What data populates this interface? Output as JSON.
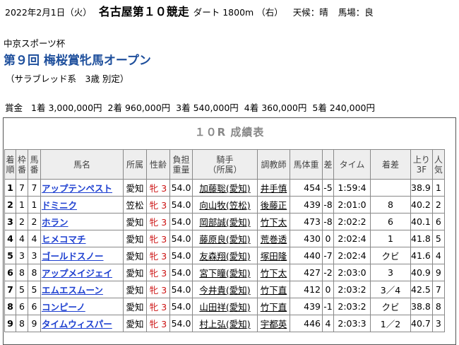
{
  "header": {
    "date": "2022年2月1日",
    "weekday": "（火）",
    "race": "名古屋第１０競走",
    "course": "ダート 1800m",
    "direction": "（右）",
    "weather": "天候：晴",
    "going": "馬場：良"
  },
  "race_info": {
    "sponsor": "中京スポーツ杯",
    "title": "第９回 梅桜賞牝馬オープン",
    "conditions": "（サラブレッド系　3歳 別定）"
  },
  "prize": {
    "label": "賞金",
    "items": [
      "1着 3,000,000円",
      "2着 960,000円",
      "3着 540,000円",
      "4着 360,000円",
      "5着 240,000円"
    ]
  },
  "table": {
    "caption": "１０R 成績表",
    "headers": {
      "rank": "着\n順",
      "frame": "枠\n番",
      "number": "馬\n番",
      "horse": "馬名",
      "affil": "所属",
      "sex_age": "性齢",
      "weight_carried": "負担\n重量",
      "jockey": "騎手\n（所属）",
      "trainer": "調教師",
      "body_weight": "馬体重",
      "diff": "差",
      "time": "タイム",
      "margin": "着差",
      "last3f": "上り\n3F",
      "popularity": "人\n気"
    },
    "rows": [
      {
        "rank": "1",
        "frame": "7",
        "number": "7",
        "horse": "アップテンペスト",
        "affil": "愛知",
        "sex_age": "牝 3",
        "weight_carried": "54.0",
        "jockey": "加藤聡(愛知)",
        "trainer": "井手慎",
        "body_weight": "454",
        "diff": "-5",
        "time": "1:59:4",
        "margin": "",
        "last3f": "38.9",
        "popularity": "1"
      },
      {
        "rank": "2",
        "frame": "1",
        "number": "1",
        "horse": "ドミニク",
        "affil": "笠松",
        "sex_age": "牝 3",
        "weight_carried": "54.0",
        "jockey": "向山牧(笠松)",
        "trainer": "後藤正",
        "body_weight": "439",
        "diff": "-8",
        "time": "2:01:0",
        "margin": "8",
        "last3f": "40.2",
        "popularity": "2"
      },
      {
        "rank": "3",
        "frame": "2",
        "number": "2",
        "horse": "ホラン",
        "affil": "愛知",
        "sex_age": "牝 3",
        "weight_carried": "54.0",
        "jockey": "岡部誠(愛知)",
        "trainer": "竹下太",
        "body_weight": "473",
        "diff": "-8",
        "time": "2:02:2",
        "margin": "6",
        "last3f": "40.1",
        "popularity": "6"
      },
      {
        "rank": "4",
        "frame": "4",
        "number": "4",
        "horse": "ヒメコマチ",
        "affil": "愛知",
        "sex_age": "牝 3",
        "weight_carried": "54.0",
        "jockey": "藤原良(愛知)",
        "trainer": "荒巻透",
        "body_weight": "430",
        "diff": "0",
        "time": "2:02:4",
        "margin": "1",
        "last3f": "41.8",
        "popularity": "5"
      },
      {
        "rank": "5",
        "frame": "3",
        "number": "3",
        "horse": "ゴールドスノー",
        "affil": "愛知",
        "sex_age": "牝 3",
        "weight_carried": "54.0",
        "jockey": "友森翔(愛知)",
        "trainer": "塚田隆",
        "body_weight": "440",
        "diff": "-7",
        "time": "2:02:4",
        "margin": "クビ",
        "last3f": "41.6",
        "popularity": "4"
      },
      {
        "rank": "6",
        "frame": "8",
        "number": "8",
        "horse": "アップメイジェイ",
        "affil": "愛知",
        "sex_age": "牝 3",
        "weight_carried": "54.0",
        "jockey": "宮下瞳(愛知)",
        "trainer": "竹下太",
        "body_weight": "427",
        "diff": "-2",
        "time": "2:03:0",
        "margin": "3",
        "last3f": "40.9",
        "popularity": "9"
      },
      {
        "rank": "7",
        "frame": "5",
        "number": "5",
        "horse": "エムエスムーン",
        "affil": "愛知",
        "sex_age": "牝 3",
        "weight_carried": "54.0",
        "jockey": "今井貴(愛知)",
        "trainer": "竹下直",
        "body_weight": "412",
        "diff": "0",
        "time": "2:03:2",
        "margin": "3／4",
        "last3f": "42.5",
        "popularity": "7"
      },
      {
        "rank": "8",
        "frame": "6",
        "number": "6",
        "horse": "コンピーノ",
        "affil": "愛知",
        "sex_age": "牝 3",
        "weight_carried": "54.0",
        "jockey": "山田祥(愛知)",
        "trainer": "竹下直",
        "body_weight": "439",
        "diff": "-1",
        "time": "2:03:2",
        "margin": "クビ",
        "last3f": "38.8",
        "popularity": "8"
      },
      {
        "rank": "9",
        "frame": "8",
        "number": "9",
        "horse": "タイムウィスパー",
        "affil": "愛知",
        "sex_age": "牝 3",
        "weight_carried": "54.0",
        "jockey": "村上弘(愛知)",
        "trainer": "宇都英",
        "body_weight": "446",
        "diff": "4",
        "time": "2:03:3",
        "margin": "1／2",
        "last3f": "40.7",
        "popularity": "3"
      }
    ]
  }
}
